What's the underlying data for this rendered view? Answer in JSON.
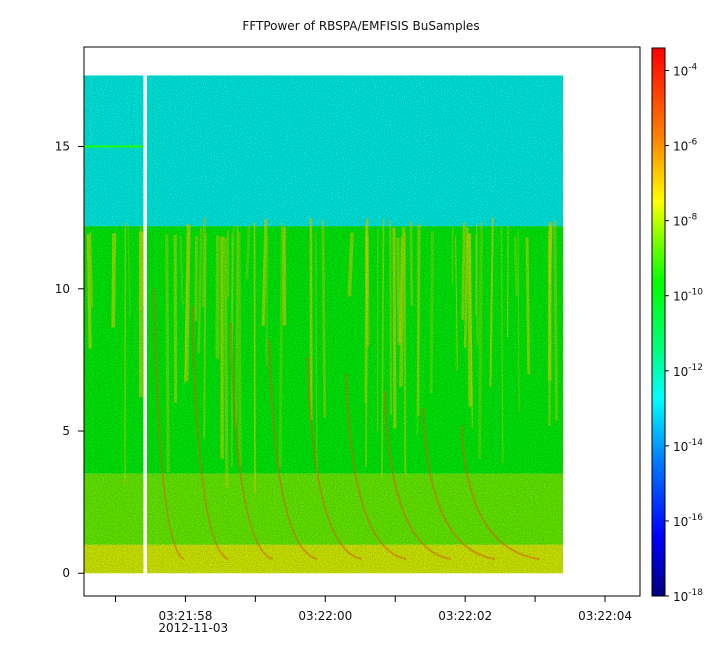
{
  "chart_data": {
    "type": "heatmap",
    "title": "FFTPower of RBSPA/EMFISIS  BuSamples",
    "xlabel": "",
    "ylabel": "",
    "x_ticks": [
      {
        "value": 57.0,
        "label": ""
      },
      {
        "value": 58.0,
        "label": "03:21:58"
      },
      {
        "value": 59.0,
        "label": ""
      },
      {
        "value": 60.0,
        "label": "03:22:00"
      },
      {
        "value": 61.0,
        "label": ""
      },
      {
        "value": 62.0,
        "label": "03:22:02"
      },
      {
        "value": 63.0,
        "label": ""
      },
      {
        "value": 64.0,
        "label": "03:22:04"
      }
    ],
    "x_date_label": "2012-11-03",
    "xlim": [
      56.55,
      64.5
    ],
    "ylim": [
      -0.8,
      18.5
    ],
    "y_ticks": [
      0,
      5,
      10,
      15
    ],
    "data_extent": {
      "x": [
        56.55,
        63.4
      ],
      "y": [
        0,
        17.5
      ]
    },
    "gap": {
      "x": [
        57.4,
        57.45
      ]
    },
    "bands": [
      {
        "y": [
          12.2,
          17.5
        ],
        "level_exp": -13
      },
      {
        "y": [
          3.5,
          12.2
        ],
        "level_exp": -10
      },
      {
        "y": [
          1.0,
          3.5
        ],
        "level_exp": -8.5
      },
      {
        "y": [
          0,
          1.0
        ],
        "level_exp": -7
      }
    ],
    "line_15": {
      "y": 15.0,
      "x": [
        56.55,
        57.4
      ],
      "level_exp": -9.5
    },
    "colorbar": {
      "scale": "log",
      "range_exp": [
        -18,
        -3.4
      ],
      "tick_exponents": [
        -4,
        -6,
        -8,
        -10,
        -12,
        -14,
        -16,
        -18
      ],
      "tick_base": "10",
      "colormap": [
        "#00007f",
        "#0000ff",
        "#007fff",
        "#00ffff",
        "#00ff7f",
        "#00ff00",
        "#7fff00",
        "#ffff00",
        "#ff7f00",
        "#ff0000"
      ]
    }
  }
}
